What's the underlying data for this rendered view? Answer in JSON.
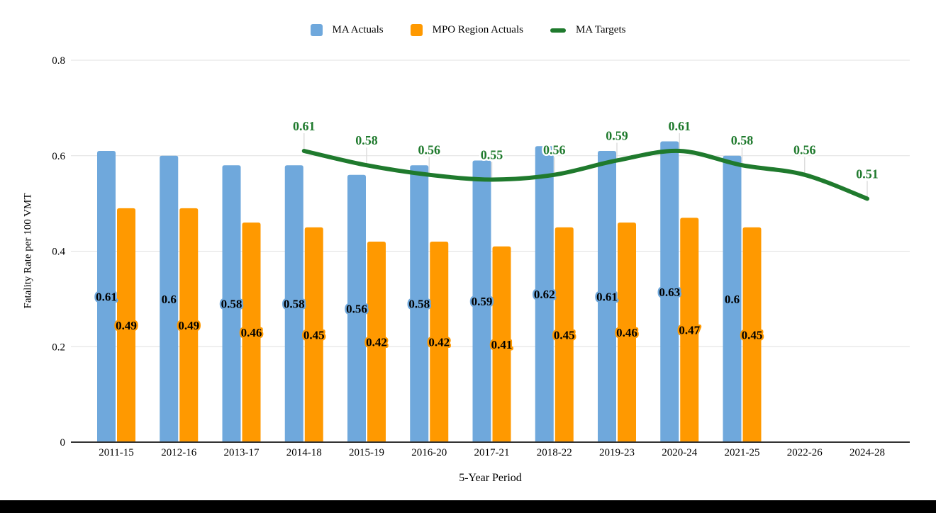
{
  "page": {
    "background": "#FFFFFF",
    "footer_bar_color": "#000000"
  },
  "legend": {
    "position": "top-center",
    "items": [
      {
        "label": "MA Actuals",
        "color": "#6FA8DC",
        "swatch": "bar"
      },
      {
        "label": "MPO Region Actuals",
        "color": "#FF9900",
        "swatch": "bar"
      },
      {
        "label": "MA Targets",
        "color": "#1F7A2D",
        "swatch": "line"
      }
    ]
  },
  "chart_data": {
    "type": "combo",
    "title": "",
    "xlabel": "5-Year Period",
    "ylabel": "Fatality Rate per 100 VMT",
    "ylim": [
      0,
      0.8
    ],
    "yticks": [
      0,
      0.2,
      0.4,
      0.6,
      0.8
    ],
    "grid": "horizontal",
    "grid_color": "#E0E0E0",
    "axis_color": "#333333",
    "stem_color": "#DDDDDD",
    "legend_position": "top",
    "data_labels": true,
    "categories": [
      "2011-15",
      "2012-16",
      "2013-17",
      "2014-18",
      "2015-19",
      "2016-20",
      "2017-21",
      "2018-22",
      "2019-23",
      "2020-24",
      "2021-25",
      "2022-26",
      "2024-28"
    ],
    "series": [
      {
        "name": "MA Actuals",
        "type": "bar",
        "color": "#6FA8DC",
        "values": [
          0.61,
          0.6,
          0.58,
          0.58,
          0.56,
          0.58,
          0.59,
          0.62,
          0.61,
          0.63,
          0.6,
          null,
          null
        ]
      },
      {
        "name": "MPO Region Actuals",
        "type": "bar",
        "color": "#FF9900",
        "values": [
          0.49,
          0.49,
          0.46,
          0.45,
          0.42,
          0.42,
          0.41,
          0.45,
          0.46,
          0.47,
          0.45,
          null,
          null
        ]
      },
      {
        "name": "MA Targets",
        "type": "line",
        "color": "#1F7A2D",
        "label_halo": "#FFFFFF",
        "values": [
          null,
          null,
          null,
          0.61,
          0.58,
          0.56,
          0.55,
          0.56,
          0.59,
          0.61,
          0.58,
          0.56,
          0.51
        ]
      }
    ]
  }
}
